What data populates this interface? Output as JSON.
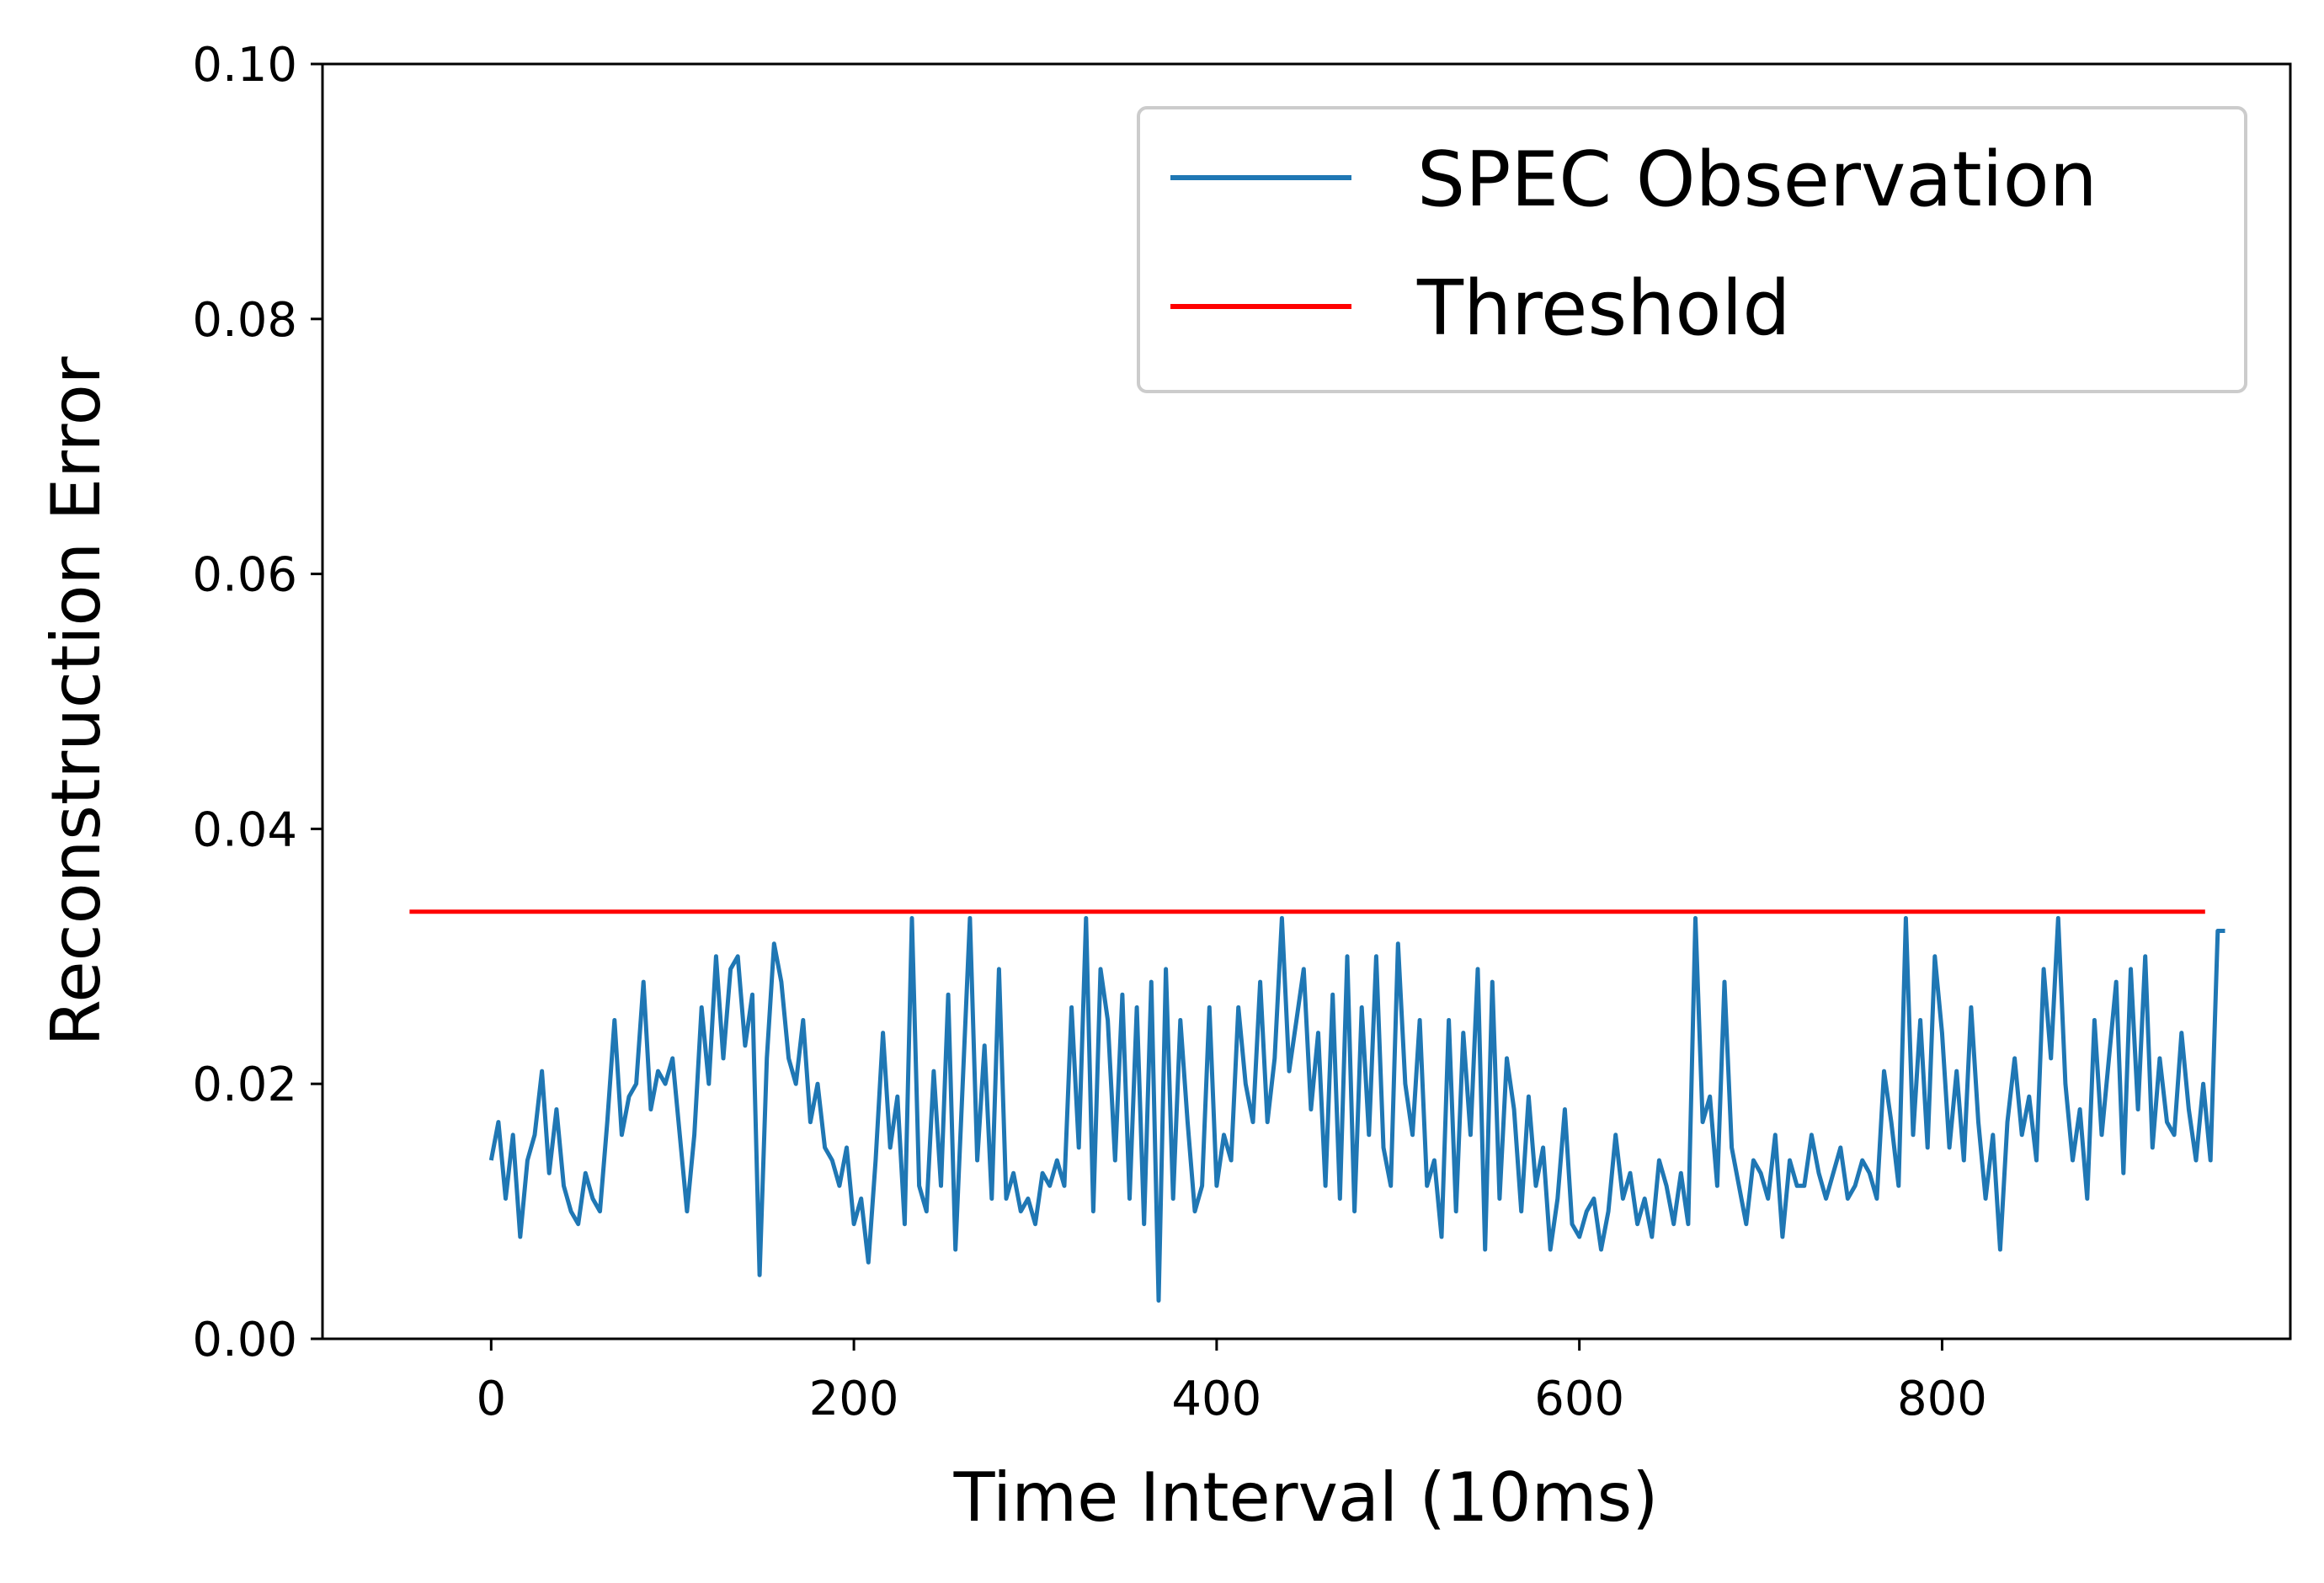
{
  "chart_data": {
    "type": "line",
    "xlabel": "Time Interval (10ms)",
    "ylabel": "Reconstruction Error",
    "xlim": [
      -93,
      992
    ],
    "ylim": [
      0.0,
      0.1
    ],
    "xticks": [
      0,
      200,
      400,
      600,
      800
    ],
    "xtick_labels": [
      "0",
      "200",
      "400",
      "600",
      "800"
    ],
    "yticks": [
      0.0,
      0.02,
      0.04,
      0.06,
      0.08,
      0.1
    ],
    "ytick_labels": [
      "0.00",
      "0.02",
      "0.04",
      "0.06",
      "0.08",
      "0.10"
    ],
    "grid": false,
    "legend_position": "top-right",
    "series": [
      {
        "name": "SPEC Observation",
        "color": "#1f77b4",
        "x_start": 0,
        "x_step": 4,
        "values": [
          0.014,
          0.017,
          0.011,
          0.016,
          0.008,
          0.014,
          0.016,
          0.021,
          0.013,
          0.018,
          0.012,
          0.01,
          0.009,
          0.013,
          0.011,
          0.01,
          0.017,
          0.025,
          0.016,
          0.019,
          0.02,
          0.028,
          0.018,
          0.021,
          0.02,
          0.022,
          0.016,
          0.01,
          0.016,
          0.026,
          0.02,
          0.03,
          0.022,
          0.029,
          0.03,
          0.023,
          0.027,
          0.005,
          0.022,
          0.031,
          0.028,
          0.022,
          0.02,
          0.025,
          0.017,
          0.02,
          0.015,
          0.014,
          0.012,
          0.015,
          0.009,
          0.011,
          0.006,
          0.014,
          0.024,
          0.015,
          0.019,
          0.009,
          0.033,
          0.012,
          0.01,
          0.021,
          0.012,
          0.027,
          0.007,
          0.02,
          0.033,
          0.014,
          0.023,
          0.011,
          0.029,
          0.011,
          0.013,
          0.01,
          0.011,
          0.009,
          0.013,
          0.012,
          0.014,
          0.012,
          0.026,
          0.015,
          0.033,
          0.01,
          0.029,
          0.025,
          0.014,
          0.027,
          0.011,
          0.026,
          0.009,
          0.028,
          0.003,
          0.029,
          0.011,
          0.025,
          0.017,
          0.01,
          0.012,
          0.026,
          0.012,
          0.016,
          0.014,
          0.026,
          0.02,
          0.017,
          0.028,
          0.017,
          0.022,
          0.033,
          0.021,
          0.025,
          0.029,
          0.018,
          0.024,
          0.012,
          0.027,
          0.011,
          0.03,
          0.01,
          0.026,
          0.016,
          0.03,
          0.015,
          0.012,
          0.031,
          0.02,
          0.016,
          0.025,
          0.012,
          0.014,
          0.008,
          0.025,
          0.01,
          0.024,
          0.016,
          0.029,
          0.007,
          0.028,
          0.011,
          0.022,
          0.018,
          0.01,
          0.019,
          0.012,
          0.015,
          0.007,
          0.011,
          0.018,
          0.009,
          0.008,
          0.01,
          0.011,
          0.007,
          0.01,
          0.016,
          0.011,
          0.013,
          0.009,
          0.011,
          0.008,
          0.014,
          0.012,
          0.009,
          0.013,
          0.009,
          0.033,
          0.017,
          0.019,
          0.012,
          0.028,
          0.015,
          0.012,
          0.009,
          0.014,
          0.013,
          0.011,
          0.016,
          0.008,
          0.014,
          0.012,
          0.012,
          0.016,
          0.013,
          0.011,
          0.013,
          0.015,
          0.011,
          0.012,
          0.014,
          0.013,
          0.011,
          0.021,
          0.017,
          0.012,
          0.033,
          0.016,
          0.025,
          0.015,
          0.03,
          0.024,
          0.015,
          0.021,
          0.014,
          0.026,
          0.017,
          0.011,
          0.016,
          0.007,
          0.017,
          0.022,
          0.016,
          0.019,
          0.014,
          0.029,
          0.022,
          0.033,
          0.02,
          0.014,
          0.018,
          0.011,
          0.025,
          0.016,
          0.022,
          0.028,
          0.013,
          0.029,
          0.018,
          0.03,
          0.015,
          0.022,
          0.017,
          0.016,
          0.024,
          0.018,
          0.014,
          0.02,
          0.014,
          0.032,
          0.032
        ]
      },
      {
        "name": "Threshold",
        "color": "#ff0000",
        "x": [
          -45,
          945
        ],
        "values": [
          0.0335,
          0.0335
        ]
      }
    ]
  }
}
